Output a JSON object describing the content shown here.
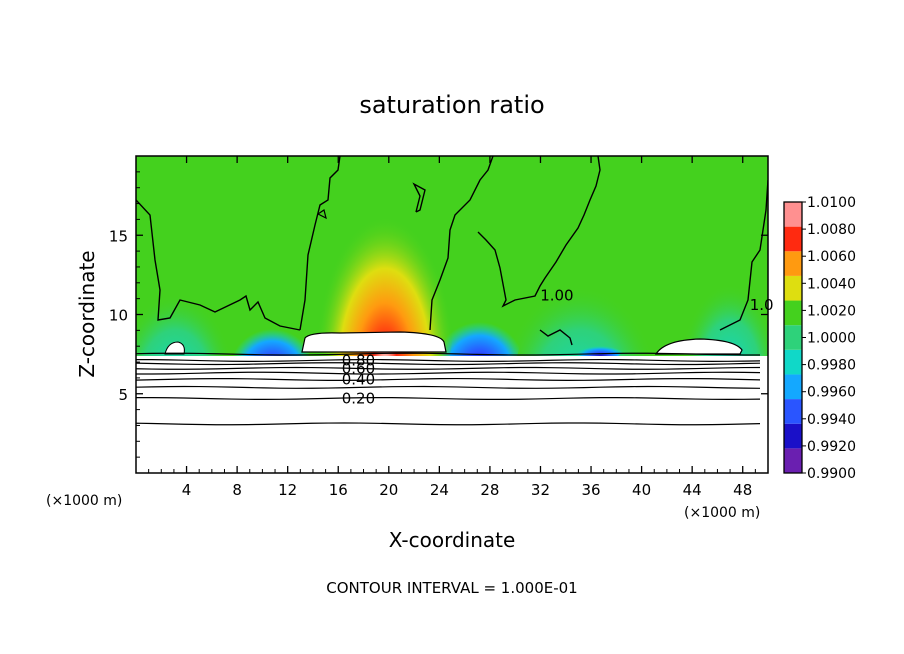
{
  "chart_data": {
    "type": "heatmap",
    "title": "saturation ratio",
    "xlabel": "X-coordinate",
    "ylabel": "Z-coordinate",
    "x_unit_left": "(×1000 m)",
    "x_unit_right": "(×1000 m)",
    "xlim": [
      0,
      50
    ],
    "ylim": [
      0,
      20
    ],
    "x_ticks": [
      4,
      8,
      12,
      16,
      20,
      24,
      28,
      32,
      36,
      40,
      44,
      48
    ],
    "x_tick_labels": [
      "4",
      "8",
      "12",
      "16",
      "20",
      "24",
      "28",
      "32",
      "36",
      "40",
      "44",
      "48"
    ],
    "y_ticks": [
      5,
      10,
      15
    ],
    "y_tick_labels": [
      "5",
      "10",
      "15"
    ],
    "colorbar": {
      "levels": [
        "0.9900",
        "0.9920",
        "0.9940",
        "0.9960",
        "0.9980",
        "1.0000",
        "1.0020",
        "1.0040",
        "1.0060",
        "1.0080",
        "1.0100"
      ],
      "colors": [
        "#6a1fb0",
        "#1a10c8",
        "#2a55ff",
        "#14a8ff",
        "#10d8c8",
        "#2ed27a",
        "#44d11e",
        "#dede10",
        "#ff9a10",
        "#ff2a10",
        "#ff9090"
      ]
    },
    "contour_labels": [
      {
        "text": "0.80",
        "x": 17.6,
        "z": 7.1
      },
      {
        "text": "0.60",
        "x": 17.6,
        "z": 6.6
      },
      {
        "text": "0.40",
        "x": 17.6,
        "z": 5.9
      },
      {
        "text": "0.20",
        "x": 17.6,
        "z": 4.7
      },
      {
        "text": "1.00",
        "x": 33.3,
        "z": 11.2
      },
      {
        "text": "1.0",
        "x": 49.5,
        "z": 10.6
      }
    ],
    "contour_interval_text": "CONTOUR INTERVAL = 1.000E-01"
  }
}
